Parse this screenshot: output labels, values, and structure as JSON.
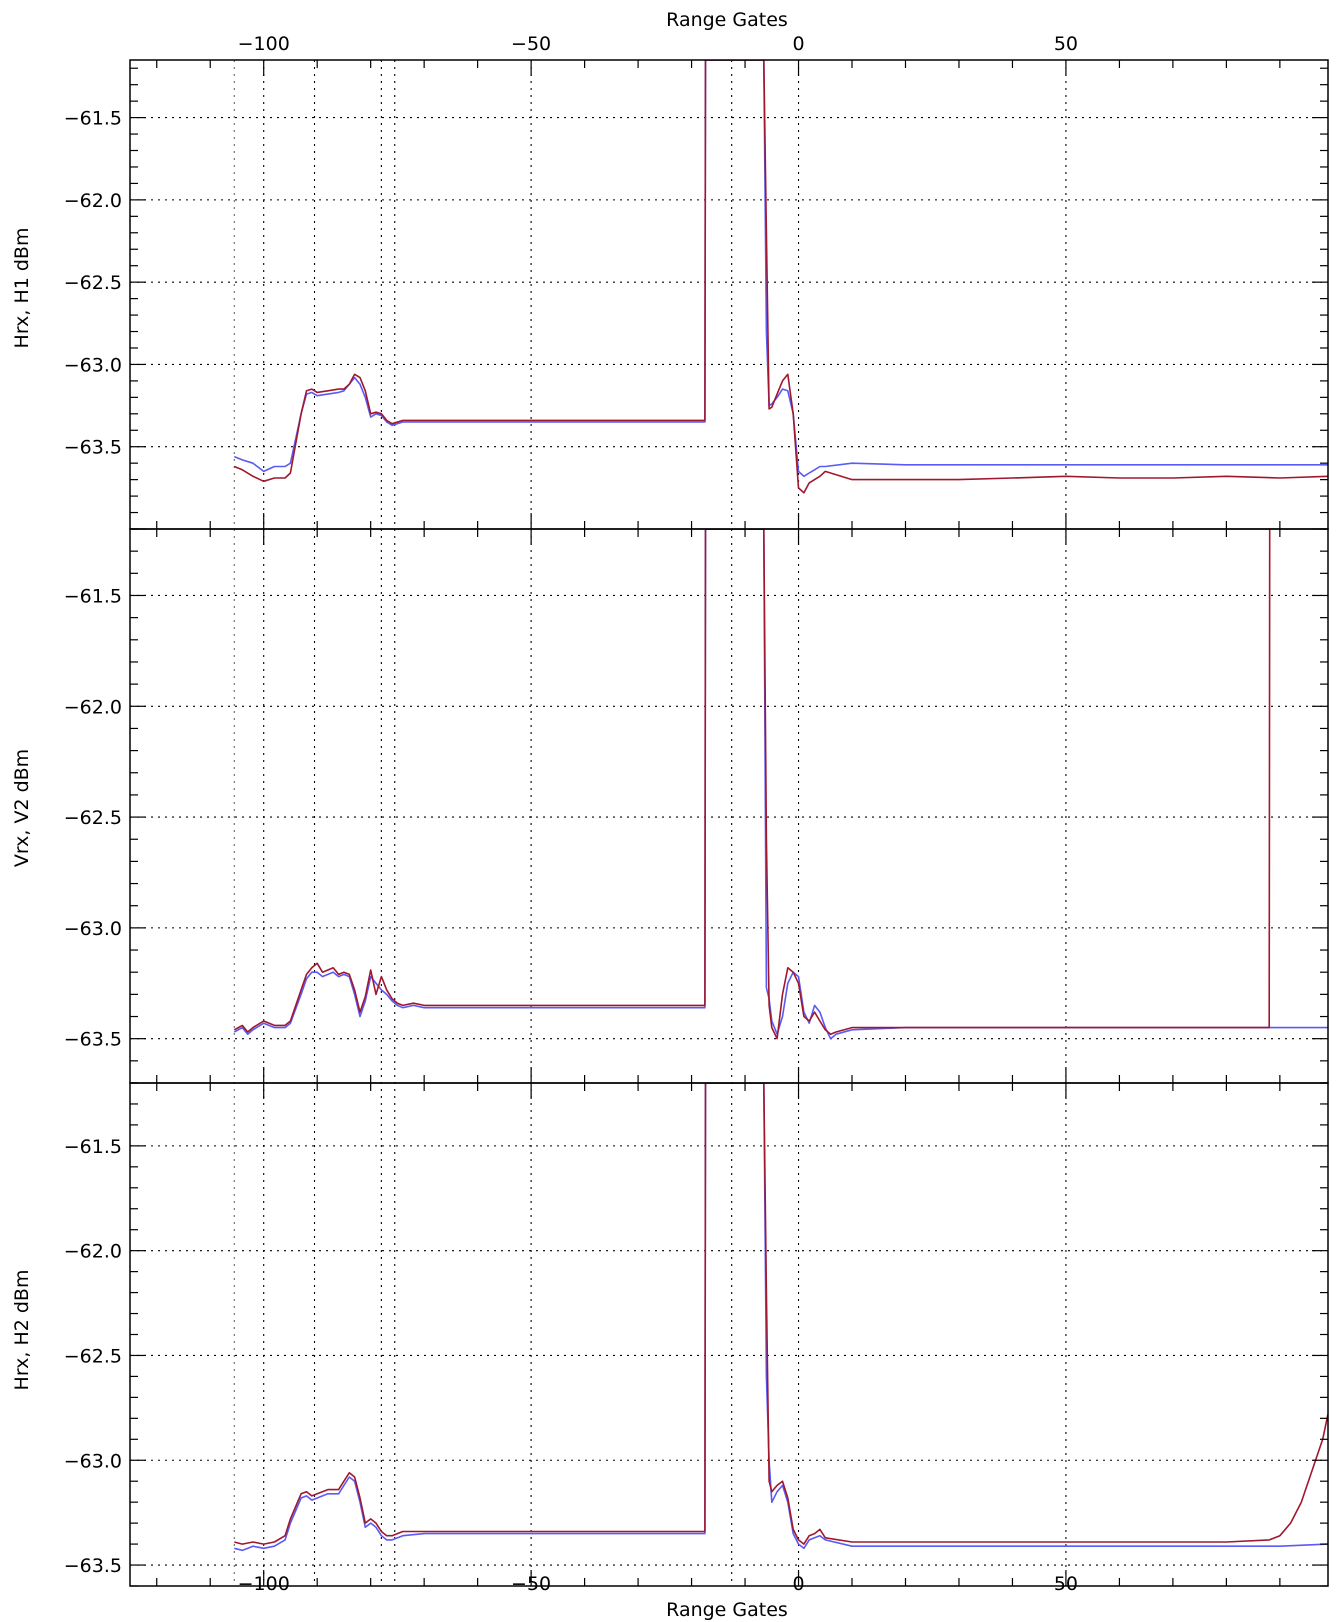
{
  "chart_data": {
    "type": "line",
    "title": "",
    "xlabel_top": "Range Gates",
    "xlabel_bottom": "Range Gates",
    "xlim": [
      -125,
      99
    ],
    "x_ticks": [
      -100,
      -50,
      0,
      50
    ],
    "x_tick_labels": [
      "−100",
      "−50",
      "0",
      "50"
    ],
    "vlines_dotted": [
      -105.5,
      -90.5,
      -78,
      -75.5,
      -12.5
    ],
    "series_colors": [
      "#5a5af5",
      "#a0182e"
    ],
    "panels": [
      {
        "ylabel": "Hrx, H1 dBm",
        "ylim": [
          -64.0,
          -61.15
        ],
        "y_ticks": [
          -61.5,
          -62.0,
          -62.5,
          -63.0,
          -63.5
        ],
        "y_tick_labels": [
          "−61.5",
          "−62.0",
          "−62.5",
          "−63.0",
          "−63.5"
        ],
        "grid": true,
        "series": [
          {
            "color": "#5a5af5",
            "x": [
              -105.5,
              -104,
              -102,
              -100,
              -98,
              -96,
              -95,
              -93,
              -92,
              -91,
              -90,
              -88,
              -86,
              -85,
              -84,
              -83,
              -82,
              -81,
              -80,
              -79,
              -78,
              -77,
              -76,
              -74,
              -70,
              -60,
              -50,
              -40,
              -30,
              -20,
              -17.5,
              -17.4,
              -17,
              -6.5,
              -6,
              -5.5,
              -5,
              -4,
              -3,
              -2,
              -1,
              0,
              1,
              2,
              3,
              4,
              5,
              10,
              20,
              30,
              40,
              50,
              60,
              70,
              80,
              90,
              99
            ],
            "y": [
              -63.56,
              -63.58,
              -63.6,
              -63.65,
              -63.62,
              -63.62,
              -63.6,
              -63.3,
              -63.18,
              -63.17,
              -63.19,
              -63.18,
              -63.17,
              -63.16,
              -63.12,
              -63.08,
              -63.12,
              -63.2,
              -63.32,
              -63.3,
              -63.31,
              -63.35,
              -63.37,
              -63.35,
              -63.35,
              -63.35,
              -63.35,
              -63.35,
              -63.35,
              -63.35,
              -63.35,
              -61.15,
              -61.15,
              -61.15,
              -62.8,
              -63.25,
              -63.24,
              -63.2,
              -63.15,
              -63.16,
              -63.3,
              -63.65,
              -63.68,
              -63.66,
              -63.64,
              -63.62,
              -63.62,
              -63.6,
              -63.61,
              -63.61,
              -63.61,
              -63.61,
              -63.61,
              -63.61,
              -63.61,
              -63.61,
              -63.61
            ]
          },
          {
            "color": "#a0182e",
            "x": [
              -105.5,
              -104,
              -102,
              -100,
              -98,
              -96,
              -95,
              -93,
              -92,
              -91,
              -90,
              -88,
              -86,
              -85,
              -84,
              -83,
              -82,
              -81,
              -80,
              -79,
              -78,
              -77,
              -76,
              -74,
              -70,
              -60,
              -50,
              -40,
              -30,
              -20,
              -17.5,
              -17.4,
              -17,
              -6.5,
              -6,
              -5.5,
              -5,
              -4,
              -3,
              -2,
              -1,
              0,
              1,
              2,
              3,
              4,
              5,
              10,
              20,
              30,
              40,
              50,
              60,
              70,
              80,
              90,
              99
            ],
            "y": [
              -63.62,
              -63.64,
              -63.68,
              -63.71,
              -63.69,
              -63.69,
              -63.66,
              -63.3,
              -63.16,
              -63.15,
              -63.17,
              -63.16,
              -63.15,
              -63.15,
              -63.12,
              -63.06,
              -63.08,
              -63.16,
              -63.3,
              -63.29,
              -63.3,
              -63.34,
              -63.36,
              -63.34,
              -63.34,
              -63.34,
              -63.34,
              -63.34,
              -63.34,
              -63.34,
              -63.34,
              -61.15,
              -61.15,
              -61.15,
              -62.2,
              -63.27,
              -63.26,
              -63.18,
              -63.1,
              -63.06,
              -63.3,
              -63.75,
              -63.78,
              -63.72,
              -63.7,
              -63.68,
              -63.65,
              -63.7,
              -63.7,
              -63.7,
              -63.69,
              -63.68,
              -63.69,
              -63.69,
              -63.68,
              -63.69,
              -63.68
            ]
          }
        ]
      },
      {
        "ylabel": "Vrx, V2 dBm",
        "ylim": [
          -63.7,
          -61.2
        ],
        "y_ticks": [
          -61.5,
          -62.0,
          -62.5,
          -63.0,
          -63.5
        ],
        "y_tick_labels": [
          "−61.5",
          "−62.0",
          "−62.5",
          "−63.0",
          "−63.5"
        ],
        "grid": true,
        "series": [
          {
            "color": "#5a5af5",
            "x": [
              -105.5,
              -104,
              -103,
              -102,
              -100,
              -98,
              -96,
              -95,
              -93,
              -92,
              -91,
              -90,
              -89,
              -88,
              -87,
              -86,
              -85,
              -84,
              -83,
              -82,
              -81,
              -80,
              -79,
              -78,
              -77,
              -76,
              -75,
              -74,
              -72,
              -70,
              -60,
              -50,
              -40,
              -30,
              -20,
              -17.5,
              -17.4,
              -17,
              -6.5,
              -6,
              -5.5,
              -5,
              -4,
              -3,
              -2,
              -1,
              0,
              1,
              2,
              3,
              4,
              5,
              6,
              7,
              10,
              20,
              30,
              40,
              50,
              60,
              70,
              80,
              88,
              90,
              99
            ],
            "y": [
              -63.47,
              -63.45,
              -63.48,
              -63.46,
              -63.43,
              -63.45,
              -63.45,
              -63.43,
              -63.3,
              -63.23,
              -63.2,
              -63.2,
              -63.22,
              -63.21,
              -63.2,
              -63.22,
              -63.21,
              -63.22,
              -63.3,
              -63.4,
              -63.33,
              -63.22,
              -63.25,
              -63.28,
              -63.3,
              -63.33,
              -63.35,
              -63.36,
              -63.35,
              -63.36,
              -63.36,
              -63.36,
              -63.36,
              -63.36,
              -63.36,
              -63.36,
              -61.2,
              -61.2,
              -61.2,
              -63.27,
              -63.32,
              -63.42,
              -63.48,
              -63.4,
              -63.25,
              -63.2,
              -63.22,
              -63.38,
              -63.43,
              -63.35,
              -63.38,
              -63.45,
              -63.5,
              -63.48,
              -63.46,
              -63.45,
              -63.45,
              -63.45,
              -63.45,
              -63.45,
              -63.45,
              -63.45,
              -63.45,
              -63.45,
              -63.45
            ]
          },
          {
            "color": "#a0182e",
            "x": [
              -105.5,
              -104,
              -103,
              -102,
              -100,
              -98,
              -96,
              -95,
              -93,
              -92,
              -91,
              -90,
              -89,
              -88,
              -87,
              -86,
              -85,
              -84,
              -83,
              -82,
              -81,
              -80,
              -79,
              -78,
              -77,
              -76,
              -75,
              -74,
              -72,
              -70,
              -60,
              -50,
              -40,
              -30,
              -20,
              -17.5,
              -17.4,
              -17,
              -6.5,
              -6,
              -5.5,
              -5,
              -4,
              -3,
              -2,
              -1,
              0,
              1,
              2,
              3,
              4,
              5,
              6,
              7,
              10,
              20,
              30,
              40,
              50,
              60,
              70,
              80,
              88,
              88.1,
              88.2
            ],
            "y": [
              -63.46,
              -63.44,
              -63.47,
              -63.45,
              -63.42,
              -63.44,
              -63.44,
              -63.42,
              -63.28,
              -63.21,
              -63.18,
              -63.16,
              -63.2,
              -63.19,
              -63.18,
              -63.21,
              -63.2,
              -63.21,
              -63.28,
              -63.38,
              -63.31,
              -63.19,
              -63.3,
              -63.22,
              -63.28,
              -63.32,
              -63.34,
              -63.35,
              -63.34,
              -63.35,
              -63.35,
              -63.35,
              -63.35,
              -63.35,
              -63.35,
              -63.35,
              -61.2,
              -61.2,
              -61.2,
              -62.6,
              -63.35,
              -63.45,
              -63.5,
              -63.3,
              -63.18,
              -63.2,
              -63.25,
              -63.4,
              -63.42,
              -63.38,
              -63.42,
              -63.46,
              -63.48,
              -63.47,
              -63.45,
              -63.45,
              -63.45,
              -63.45,
              -63.45,
              -63.45,
              -63.45,
              -63.45,
              -63.45,
              -61.2,
              -61.2
            ]
          }
        ]
      },
      {
        "ylabel": "Hrx, H2 dBm",
        "ylim": [
          -63.6,
          -61.2
        ],
        "y_ticks": [
          -61.5,
          -62.0,
          -62.5,
          -63.0,
          -63.5
        ],
        "y_tick_labels": [
          "−61.5",
          "−62.0",
          "−62.5",
          "−63.0",
          "−63.5"
        ],
        "grid": true,
        "series": [
          {
            "color": "#5a5af5",
            "x": [
              -105.5,
              -104,
              -102,
              -100,
              -98,
              -96,
              -95,
              -93,
              -92,
              -91,
              -90,
              -88,
              -86,
              -85,
              -84,
              -83,
              -82,
              -81,
              -80,
              -79,
              -78,
              -77,
              -76,
              -74,
              -70,
              -60,
              -50,
              -40,
              -30,
              -20,
              -17.5,
              -17.4,
              -17,
              -6.5,
              -6,
              -5.5,
              -5,
              -4,
              -3,
              -2,
              -1,
              0,
              1,
              2,
              3,
              4,
              5,
              10,
              20,
              30,
              40,
              50,
              60,
              70,
              80,
              90,
              99
            ],
            "y": [
              -63.42,
              -63.43,
              -63.41,
              -63.42,
              -63.41,
              -63.38,
              -63.3,
              -63.18,
              -63.17,
              -63.19,
              -63.18,
              -63.16,
              -63.16,
              -63.12,
              -63.08,
              -63.1,
              -63.2,
              -63.32,
              -63.3,
              -63.32,
              -63.36,
              -63.38,
              -63.38,
              -63.36,
              -63.35,
              -63.35,
              -63.35,
              -63.35,
              -63.35,
              -63.35,
              -63.35,
              -61.2,
              -61.2,
              -61.2,
              -62.6,
              -63.0,
              -63.2,
              -63.15,
              -63.12,
              -63.2,
              -63.35,
              -63.4,
              -63.42,
              -63.38,
              -63.37,
              -63.36,
              -63.38,
              -63.41,
              -63.41,
              -63.41,
              -63.41,
              -63.41,
              -63.41,
              -63.41,
              -63.41,
              -63.41,
              -63.4
            ]
          },
          {
            "color": "#a0182e",
            "x": [
              -105.5,
              -104,
              -102,
              -100,
              -98,
              -96,
              -95,
              -93,
              -92,
              -91,
              -90,
              -88,
              -86,
              -85,
              -84,
              -83,
              -82,
              -81,
              -80,
              -79,
              -78,
              -77,
              -76,
              -74,
              -70,
              -60,
              -50,
              -40,
              -30,
              -20,
              -17.5,
              -17.4,
              -17,
              -6.5,
              -6,
              -5.5,
              -5,
              -4,
              -3,
              -2,
              -1,
              0,
              1,
              2,
              3,
              4,
              5,
              10,
              20,
              30,
              40,
              50,
              60,
              70,
              80,
              88,
              90,
              92,
              94,
              96,
              98,
              99
            ],
            "y": [
              -63.39,
              -63.4,
              -63.39,
              -63.4,
              -63.39,
              -63.36,
              -63.28,
              -63.16,
              -63.15,
              -63.17,
              -63.16,
              -63.14,
              -63.14,
              -63.1,
              -63.06,
              -63.08,
              -63.18,
              -63.3,
              -63.28,
              -63.3,
              -63.34,
              -63.36,
              -63.36,
              -63.34,
              -63.34,
              -63.34,
              -63.34,
              -63.34,
              -63.34,
              -63.34,
              -63.34,
              -61.2,
              -61.2,
              -61.2,
              -62.2,
              -63.1,
              -63.15,
              -63.12,
              -63.1,
              -63.18,
              -63.33,
              -63.38,
              -63.4,
              -63.36,
              -63.35,
              -63.33,
              -63.37,
              -63.39,
              -63.39,
              -63.39,
              -63.39,
              -63.39,
              -63.39,
              -63.39,
              -63.39,
              -63.38,
              -63.36,
              -63.3,
              -63.2,
              -63.05,
              -62.9,
              -62.78
            ]
          }
        ]
      }
    ]
  }
}
